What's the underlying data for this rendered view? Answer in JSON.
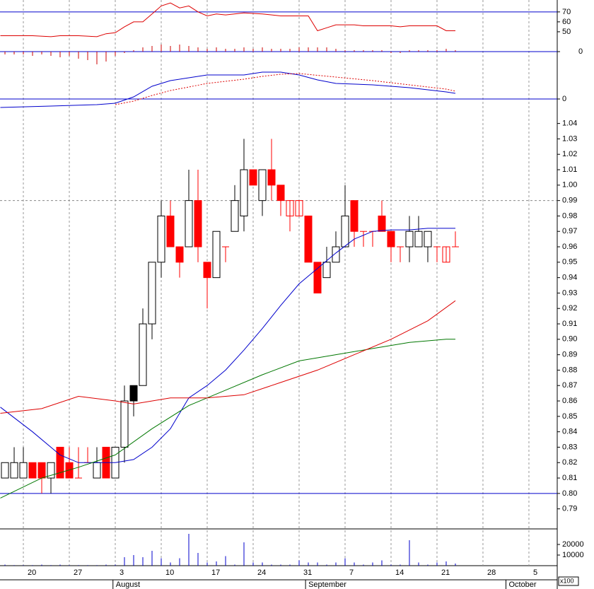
{
  "chart_data": [
    {
      "type": "line",
      "series": [
        {
          "color": "#dd0000",
          "x": [
            -0.5,
            3,
            5,
            6,
            8,
            10,
            11,
            12,
            13,
            14,
            15,
            16,
            17,
            18,
            19,
            20,
            21,
            22,
            23,
            24,
            26,
            28,
            30,
            31,
            33,
            34,
            35,
            36,
            38,
            39,
            40,
            42,
            43,
            44,
            45,
            47,
            48,
            49
          ],
          "values": [
            46,
            46,
            45,
            46,
            46,
            45,
            48,
            49,
            55,
            60,
            60,
            68,
            76,
            79,
            74,
            76,
            70,
            66,
            68,
            67,
            69,
            68,
            66,
            66,
            66,
            51,
            54,
            57,
            57,
            56,
            56,
            56,
            55,
            56,
            56,
            56,
            51,
            51
          ]
        },
        {
          "type": "bar",
          "axis": "y2",
          "color": "#cc0000",
          "values": [
            -2,
            -2,
            -2,
            -3,
            -2,
            -3,
            -4,
            -3,
            -5,
            -6,
            -9,
            -7,
            -3,
            -1,
            1,
            3,
            4,
            5,
            4,
            5,
            4,
            3,
            2,
            3,
            2,
            2,
            3,
            2,
            3,
            2,
            2,
            2,
            3,
            3,
            3,
            3,
            2,
            1,
            1,
            1,
            1,
            1,
            -1,
            -1,
            1,
            1,
            1,
            1,
            2,
            1
          ]
        }
      ],
      "ylim": [
        30,
        82
      ],
      "yticks": [
        50,
        60,
        70
      ],
      "y2lim": [
        -10,
        10
      ],
      "y2ticks": [
        0
      ],
      "reference_lines": [
        {
          "value": 70,
          "color": "#0000cc"
        },
        {
          "value": 0,
          "axis": "y2",
          "color": "#0000cc"
        }
      ]
    },
    {
      "type": "line",
      "series": [
        {
          "color": "#0000cc",
          "x": [
            -0.5,
            5,
            10,
            12,
            14,
            16,
            18,
            20,
            22,
            26,
            28,
            30,
            32,
            34,
            36,
            40,
            44,
            48,
            49
          ],
          "values": [
            -12,
            -10,
            -8,
            -6,
            3,
            18,
            26,
            30,
            34,
            34,
            38,
            38,
            34,
            27,
            22,
            20,
            16,
            10,
            8
          ]
        },
        {
          "color": "#dd0000",
          "dash": true,
          "x": [
            12,
            14,
            16,
            18,
            20,
            22,
            26,
            28,
            30,
            32,
            36,
            40,
            44,
            48,
            49
          ],
          "values": [
            -8,
            -3,
            5,
            12,
            17,
            22,
            28,
            32,
            35,
            36,
            31,
            26,
            20,
            14,
            11
          ]
        }
      ],
      "ylim": [
        -15,
        67
      ],
      "yticks": [
        0
      ],
      "reference_lines": [
        {
          "value": 0,
          "color": "#0000cc"
        }
      ]
    },
    {
      "type": "candlestick",
      "open": [
        0.81,
        0.81,
        0.81,
        0.82,
        0.82,
        0.81,
        0.83,
        0.82,
        0.81,
        0.82,
        0.81,
        0.83,
        0.81,
        0.83,
        0.87,
        0.87,
        0.91,
        0.95,
        0.98,
        0.96,
        0.96,
        0.99,
        0.95,
        0.94,
        0.96,
        0.97,
        0.98,
        1.01,
        0.99,
        1.01,
        1.0,
        0.98,
        0.98,
        0.98,
        0.95,
        0.94,
        0.95,
        0.96,
        0.99,
        0.97,
        0.97,
        0.98,
        0.97,
        0.96,
        0.96,
        0.96,
        0.96,
        0.96,
        0.95,
        0.96
      ],
      "high": [
        0.82,
        0.83,
        0.83,
        0.82,
        0.82,
        0.82,
        0.83,
        0.83,
        0.83,
        0.83,
        0.83,
        0.83,
        0.83,
        0.87,
        0.87,
        0.92,
        0.95,
        0.99,
        0.99,
        0.96,
        1.01,
        1.01,
        0.95,
        0.97,
        0.96,
        1.0,
        1.03,
        1.01,
        1.01,
        1.03,
        1.0,
        0.99,
        0.99,
        0.98,
        0.95,
        0.96,
        0.97,
        1.0,
        0.99,
        0.97,
        0.97,
        0.99,
        0.97,
        0.96,
        0.98,
        0.98,
        0.97,
        0.96,
        0.96,
        0.97
      ],
      "low": [
        0.81,
        0.81,
        0.81,
        0.81,
        0.8,
        0.8,
        0.81,
        0.81,
        0.81,
        0.82,
        0.81,
        0.81,
        0.81,
        0.82,
        0.85,
        0.87,
        0.9,
        0.94,
        0.96,
        0.94,
        0.96,
        0.95,
        0.92,
        0.94,
        0.95,
        0.97,
        0.97,
        1.0,
        0.98,
        0.99,
        0.98,
        0.97,
        0.98,
        0.95,
        0.93,
        0.94,
        0.95,
        0.96,
        0.96,
        0.96,
        0.96,
        0.97,
        0.95,
        0.95,
        0.95,
        0.96,
        0.95,
        0.95,
        0.95,
        0.96
      ],
      "close": [
        0.82,
        0.82,
        0.82,
        0.81,
        0.81,
        0.82,
        0.81,
        0.81,
        0.81,
        0.82,
        0.82,
        0.81,
        0.83,
        0.86,
        0.86,
        0.91,
        0.95,
        0.98,
        0.96,
        0.95,
        0.99,
        0.96,
        0.94,
        0.97,
        0.96,
        0.99,
        1.01,
        1.0,
        1.01,
        1.0,
        0.99,
        0.99,
        0.99,
        0.95,
        0.93,
        0.95,
        0.96,
        0.98,
        0.97,
        0.97,
        0.97,
        0.97,
        0.96,
        0.96,
        0.97,
        0.97,
        0.97,
        0.96,
        0.96,
        0.96
      ],
      "fill_colors": [
        "#ffffff",
        "#ffffff",
        "#ffffff",
        "#ff0000",
        "#ff0000",
        "#ffffff",
        "#ff0000",
        "#ff0000",
        "#ff0000",
        "#ff0000",
        "#ffffff",
        "#ff0000",
        "#ffffff",
        "#ffffff",
        "#000000",
        "#ffffff",
        "#ffffff",
        "#ffffff",
        "#ff0000",
        "#ff0000",
        "#ffffff",
        "#ff0000",
        "#ff0000",
        "#ffffff",
        "#ff0000",
        "#ffffff",
        "#ffffff",
        "#ff0000",
        "#ffffff",
        "#ff0000",
        "#ff0000",
        "none",
        "none",
        "#ff0000",
        "#ff0000",
        "#ffffff",
        "#ffffff",
        "#ffffff",
        "#ff0000",
        "#ff0000",
        "#ff0000",
        "#ff0000",
        "#ff0000",
        "#ff0000",
        "#ffffff",
        "#ffffff",
        "#ffffff",
        "#ff0000",
        "none",
        "#ff0000"
      ],
      "series": [
        {
          "color": "#0000cc",
          "x": [
            -0.5,
            3,
            6,
            8,
            10,
            12,
            14,
            16,
            18,
            20,
            22,
            24,
            26,
            28,
            30,
            32,
            34,
            36,
            38,
            40,
            42,
            44,
            46,
            48,
            49
          ],
          "values": [
            0.856,
            0.84,
            0.825,
            0.82,
            0.82,
            0.82,
            0.822,
            0.83,
            0.842,
            0.862,
            0.87,
            0.88,
            0.893,
            0.907,
            0.922,
            0.936,
            0.946,
            0.956,
            0.965,
            0.97,
            0.971,
            0.971,
            0.972,
            0.972,
            0.972
          ]
        },
        {
          "color": "#007700",
          "x": [
            -0.5,
            4,
            8,
            12,
            16,
            20,
            24,
            28,
            32,
            36,
            40,
            44,
            48,
            49
          ],
          "values": [
            0.797,
            0.81,
            0.817,
            0.825,
            0.842,
            0.857,
            0.867,
            0.877,
            0.886,
            0.89,
            0.894,
            0.898,
            0.9,
            0.9
          ]
        },
        {
          "color": "#dd0000",
          "x": [
            -0.5,
            4,
            8,
            12,
            14,
            18,
            22,
            26,
            30,
            34,
            38,
            42,
            46,
            49
          ],
          "values": [
            0.852,
            0.855,
            0.863,
            0.86,
            0.858,
            0.862,
            0.862,
            0.864,
            0.872,
            0.88,
            0.89,
            0.9,
            0.912,
            0.925
          ]
        }
      ],
      "ylim": [
        0.777,
        1.049
      ],
      "yticks": [
        0.79,
        {
          "value": 0.8,
          "label": "0.80"
        },
        0.81,
        0.82,
        0.83,
        0.84,
        0.85,
        0.86,
        0.87,
        0.88,
        0.89,
        {
          "value": 0.9,
          "label": "0.90"
        },
        0.91,
        0.92,
        0.93,
        0.94,
        0.95,
        0.96,
        0.97,
        0.98,
        0.99,
        {
          "value": 1.0,
          "label": "1.00"
        },
        1.01,
        1.02,
        1.03,
        1.04
      ],
      "reference_lines": [
        {
          "value": 0.8,
          "color": "#0000cc"
        },
        {
          "value": 0.99,
          "color": "#888888",
          "dash": true
        }
      ]
    },
    {
      "type": "bar",
      "color": "#0000cc",
      "values": [
        1000,
        500,
        500,
        500,
        1000,
        500,
        1000,
        500,
        500,
        500,
        500,
        1000,
        1000,
        8000,
        10000,
        8000,
        14000,
        7000,
        3000,
        7000,
        30000,
        12000,
        3000,
        4000,
        9000,
        1000,
        22000,
        3000,
        3000,
        1000,
        1000,
        1000,
        5000,
        3000,
        3000,
        1000,
        3000,
        7000,
        3000,
        1000,
        3000,
        5000,
        1000,
        1000,
        24000,
        3000,
        1000,
        3000,
        4000,
        2000
      ],
      "ylim": [
        0,
        30000
      ],
      "yticks": [
        10000,
        20000
      ],
      "unit_label": "x100",
      "xlim": [
        -0.54,
        60.08
      ],
      "xticks": [
        {
          "value": 2,
          "label": "20"
        },
        {
          "value": 7,
          "label": "27"
        },
        {
          "value": 12,
          "label": "3"
        },
        {
          "value": 17,
          "label": "10"
        },
        {
          "value": 22,
          "label": "17"
        },
        {
          "value": 27,
          "label": "24"
        },
        {
          "value": 32,
          "label": "31"
        },
        {
          "value": 37,
          "label": "7"
        },
        {
          "value": 42,
          "label": "14"
        },
        {
          "value": 47,
          "label": "21"
        },
        {
          "value": 52,
          "label": "28"
        },
        {
          "value": 57,
          "label": "5"
        }
      ],
      "months": [
        {
          "value": 11.75,
          "label": "August"
        },
        {
          "value": 32.7,
          "label": "September"
        },
        {
          "value": 54.5,
          "label": "October"
        }
      ]
    }
  ]
}
